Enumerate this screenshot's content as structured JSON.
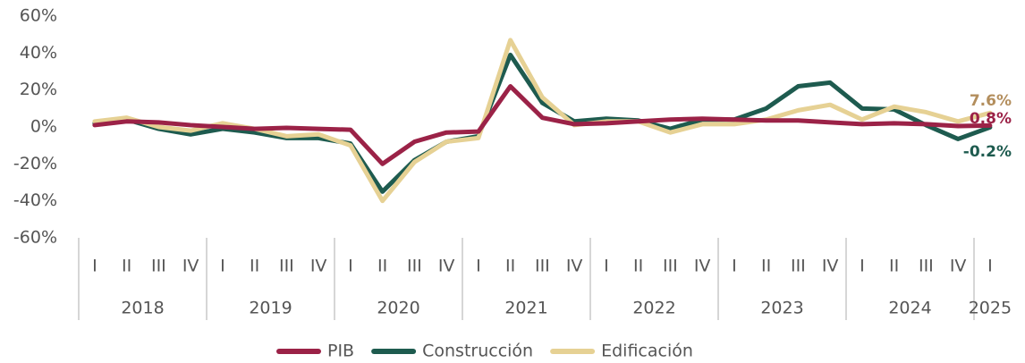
{
  "chart_data": {
    "type": "line",
    "categories": [
      "I",
      "II",
      "III",
      "IV",
      "I",
      "II",
      "III",
      "IV",
      "I",
      "II",
      "III",
      "IV",
      "I",
      "II",
      "III",
      "IV",
      "I",
      "II",
      "III",
      "IV",
      "I",
      "II",
      "III",
      "IV",
      "I",
      "II",
      "III",
      "IV",
      "I"
    ],
    "years": [
      "2018",
      "2019",
      "2020",
      "2021",
      "2022",
      "2023",
      "2024",
      "2025"
    ],
    "ylim": [
      -60,
      60
    ],
    "yticks": [
      {
        "value": -60,
        "label": "-60%"
      },
      {
        "value": -40,
        "label": "-40%"
      },
      {
        "value": -20,
        "label": "-20%"
      },
      {
        "value": 0,
        "label": "0%"
      },
      {
        "value": 20,
        "label": "20%"
      },
      {
        "value": 40,
        "label": "40%"
      },
      {
        "value": 60,
        "label": "60%"
      }
    ],
    "series": [
      {
        "name": "PIB",
        "color": "#9b2247",
        "label_color": "#9b2247",
        "values": [
          1,
          3,
          2.5,
          1,
          0,
          -1,
          -0.5,
          -1,
          -1.5,
          -20,
          -8,
          -3,
          -2.5,
          22,
          5,
          1.5,
          2,
          3,
          4,
          4.5,
          4,
          3.5,
          3.5,
          2.5,
          1.5,
          2,
          1.5,
          0.5,
          0.8
        ],
        "end_label": "0.8%"
      },
      {
        "name": "Construcción",
        "color": "#1e5b4f",
        "label_color": "#1e5b4f",
        "values": [
          2,
          4,
          -1,
          -4,
          -1,
          -3,
          -6,
          -6,
          -9,
          -35,
          -18,
          -8,
          -5,
          39,
          13,
          3,
          4.5,
          3.5,
          -1,
          4,
          4,
          10,
          22,
          24,
          10,
          9.5,
          1,
          -6.5,
          -0.2
        ],
        "end_label": "-0.2%"
      },
      {
        "name": "Edificación",
        "color": "#e6d194",
        "label_color": "#b38e5d",
        "values": [
          3,
          5,
          0,
          -2,
          2,
          -1,
          -5,
          -4,
          -10,
          -40,
          -19,
          -8,
          -6,
          47,
          16,
          1,
          3,
          3,
          -3,
          1.5,
          1.5,
          4,
          9,
          12,
          4,
          11,
          8,
          3,
          7.6
        ],
        "end_label": "7.6%"
      }
    ]
  }
}
